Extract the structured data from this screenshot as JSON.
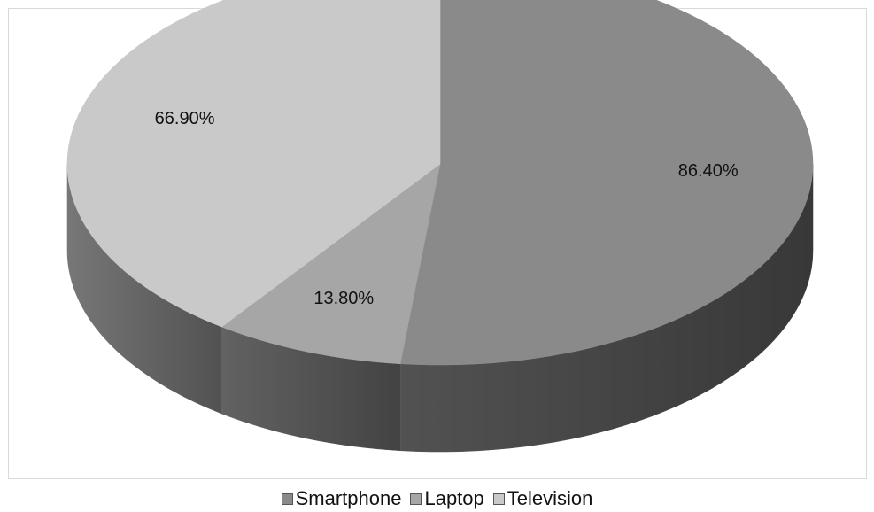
{
  "chart_data": {
    "type": "pie",
    "style": "3d",
    "categories": [
      "Smartphone",
      "Laptop",
      "Television"
    ],
    "values": [
      86.4,
      13.8,
      66.9
    ],
    "data_labels": [
      "86.40%",
      "13.80%",
      "66.90%"
    ],
    "colors": [
      "#8a8a8a",
      "#a6a6a6",
      "#c9c9c9"
    ],
    "legend_position": "bottom"
  }
}
